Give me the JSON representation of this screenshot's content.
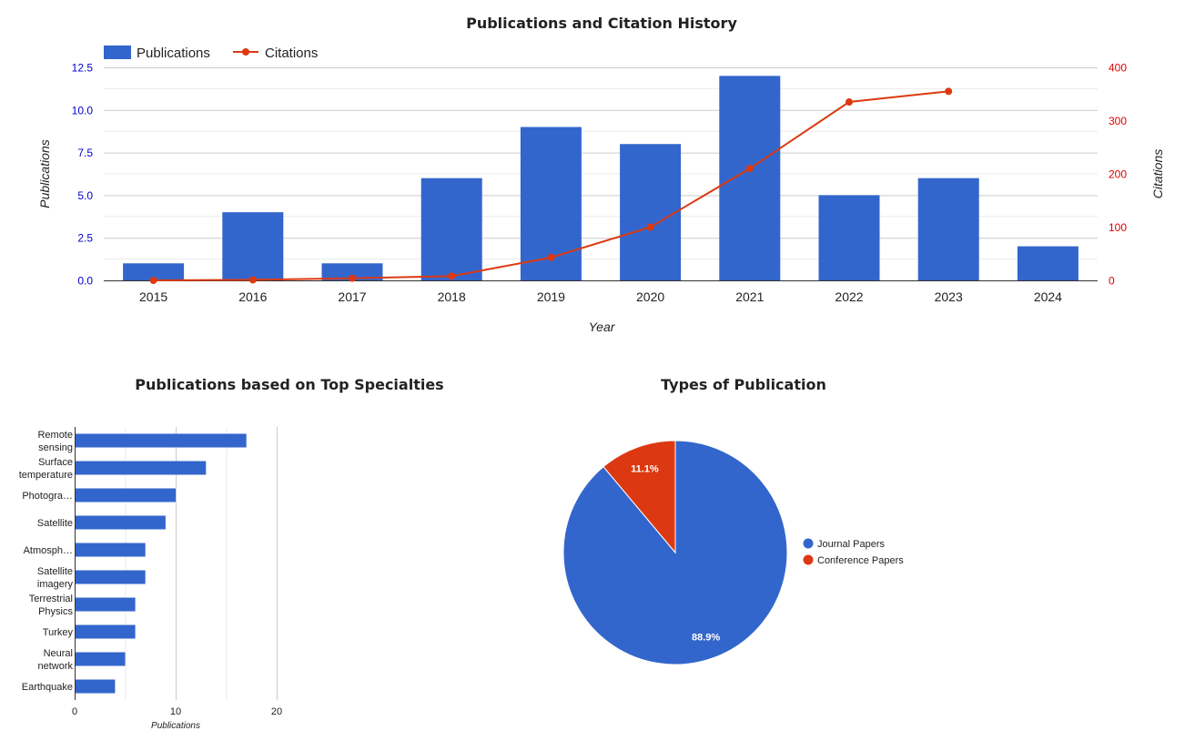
{
  "colors": {
    "publications": "#3366cc",
    "citations": "#dc3912",
    "grid": "#cccccc",
    "minor_grid": "#ebebeb",
    "left_axis_text": "#0000cc",
    "right_axis_text": "#dd0000"
  },
  "chart_data": [
    {
      "type": "bar",
      "title": "Publications and Citation History",
      "xlabel": "Year",
      "ylabel": "Publications",
      "y2label": "Citations",
      "categories": [
        "2015",
        "2016",
        "2017",
        "2018",
        "2019",
        "2020",
        "2021",
        "2022",
        "2023",
        "2024"
      ],
      "ylim": [
        0,
        12.5
      ],
      "y_ticks": [
        "0.0",
        "2.5",
        "5.0",
        "7.5",
        "10.0",
        "12.5"
      ],
      "y2lim": [
        0,
        400
      ],
      "y2_ticks": [
        "0",
        "100",
        "200",
        "300",
        "400"
      ],
      "legend_position": "top-left",
      "grid": true,
      "series": [
        {
          "name": "Publications",
          "type": "bar",
          "axis": "left",
          "values": [
            1,
            4,
            1,
            6,
            9,
            8,
            12,
            5,
            6,
            2
          ]
        },
        {
          "name": "Citations",
          "type": "line",
          "axis": "right",
          "values": [
            0,
            1,
            4,
            8,
            43,
            100,
            210,
            335,
            355,
            null
          ]
        }
      ]
    },
    {
      "type": "bar",
      "orientation": "horizontal",
      "title": "Publications based on Top Specialties",
      "xlabel": "Publications",
      "categories": [
        [
          "Remote",
          "sensing"
        ],
        [
          "Surface",
          "temperature"
        ],
        [
          "Photogra…"
        ],
        [
          "Satellite"
        ],
        [
          "Atmosph…"
        ],
        [
          "Satellite",
          "imagery"
        ],
        [
          "Terrestrial",
          "Physics"
        ],
        [
          "Turkey"
        ],
        [
          "Neural",
          "network"
        ],
        [
          "Earthquake"
        ]
      ],
      "values": [
        17,
        13,
        10,
        9,
        7,
        7,
        6,
        6,
        5,
        4
      ],
      "xlim": [
        0,
        20
      ],
      "x_ticks": [
        "0",
        "10",
        "20"
      ],
      "grid": true
    },
    {
      "type": "pie",
      "title": "Types of Publication",
      "labels": [
        "Journal Papers",
        "Conference Papers"
      ],
      "values": [
        88.9,
        11.1
      ],
      "slice_labels": [
        "88.9%",
        "11.1%"
      ],
      "legend_position": "right"
    }
  ]
}
